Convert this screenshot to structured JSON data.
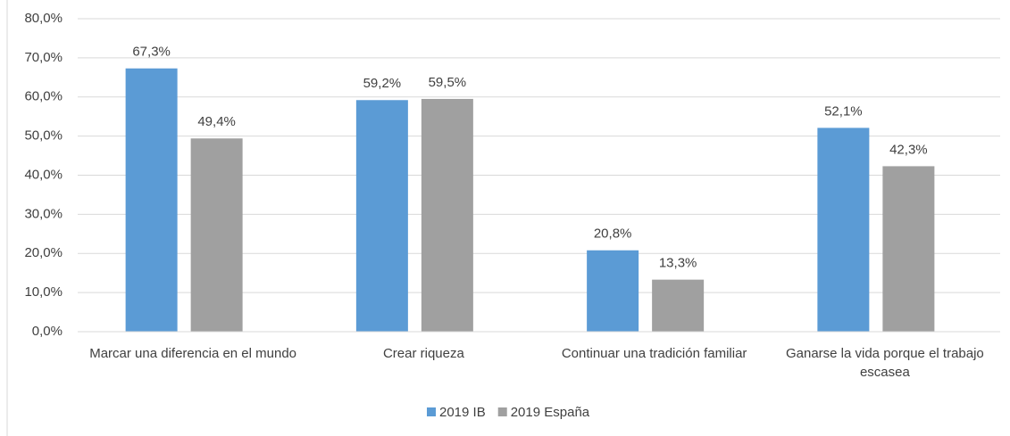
{
  "chart_data": {
    "type": "bar",
    "categories": [
      "Marcar una diferencia en el mundo",
      "Crear riqueza",
      "Continuar una tradición familiar",
      "Ganarse la vida porque el trabajo escasea"
    ],
    "series": [
      {
        "name": "2019 IB",
        "color": "#5b9bd5",
        "values": [
          67.3,
          59.2,
          20.8,
          52.1
        ],
        "value_labels": [
          "67,3%",
          "59,2%",
          "20,8%",
          "52,1%"
        ]
      },
      {
        "name": "2019 España",
        "color": "#a0a0a0",
        "values": [
          49.4,
          59.5,
          13.3,
          42.3
        ],
        "value_labels": [
          "49,4%",
          "59,5%",
          "13,3%",
          "42,3%"
        ]
      }
    ],
    "ylim": [
      0,
      80
    ],
    "yticks": [
      {
        "value": 0,
        "label": "0,0%"
      },
      {
        "value": 10,
        "label": "10,0%"
      },
      {
        "value": 20,
        "label": "20,0%"
      },
      {
        "value": 30,
        "label": "30,0%"
      },
      {
        "value": 40,
        "label": "40,0%"
      },
      {
        "value": 50,
        "label": "50,0%"
      },
      {
        "value": 60,
        "label": "60,0%"
      },
      {
        "value": 70,
        "label": "70,0%"
      },
      {
        "value": 80,
        "label": "80,0%"
      }
    ],
    "grid": true,
    "legend": "bottom"
  }
}
